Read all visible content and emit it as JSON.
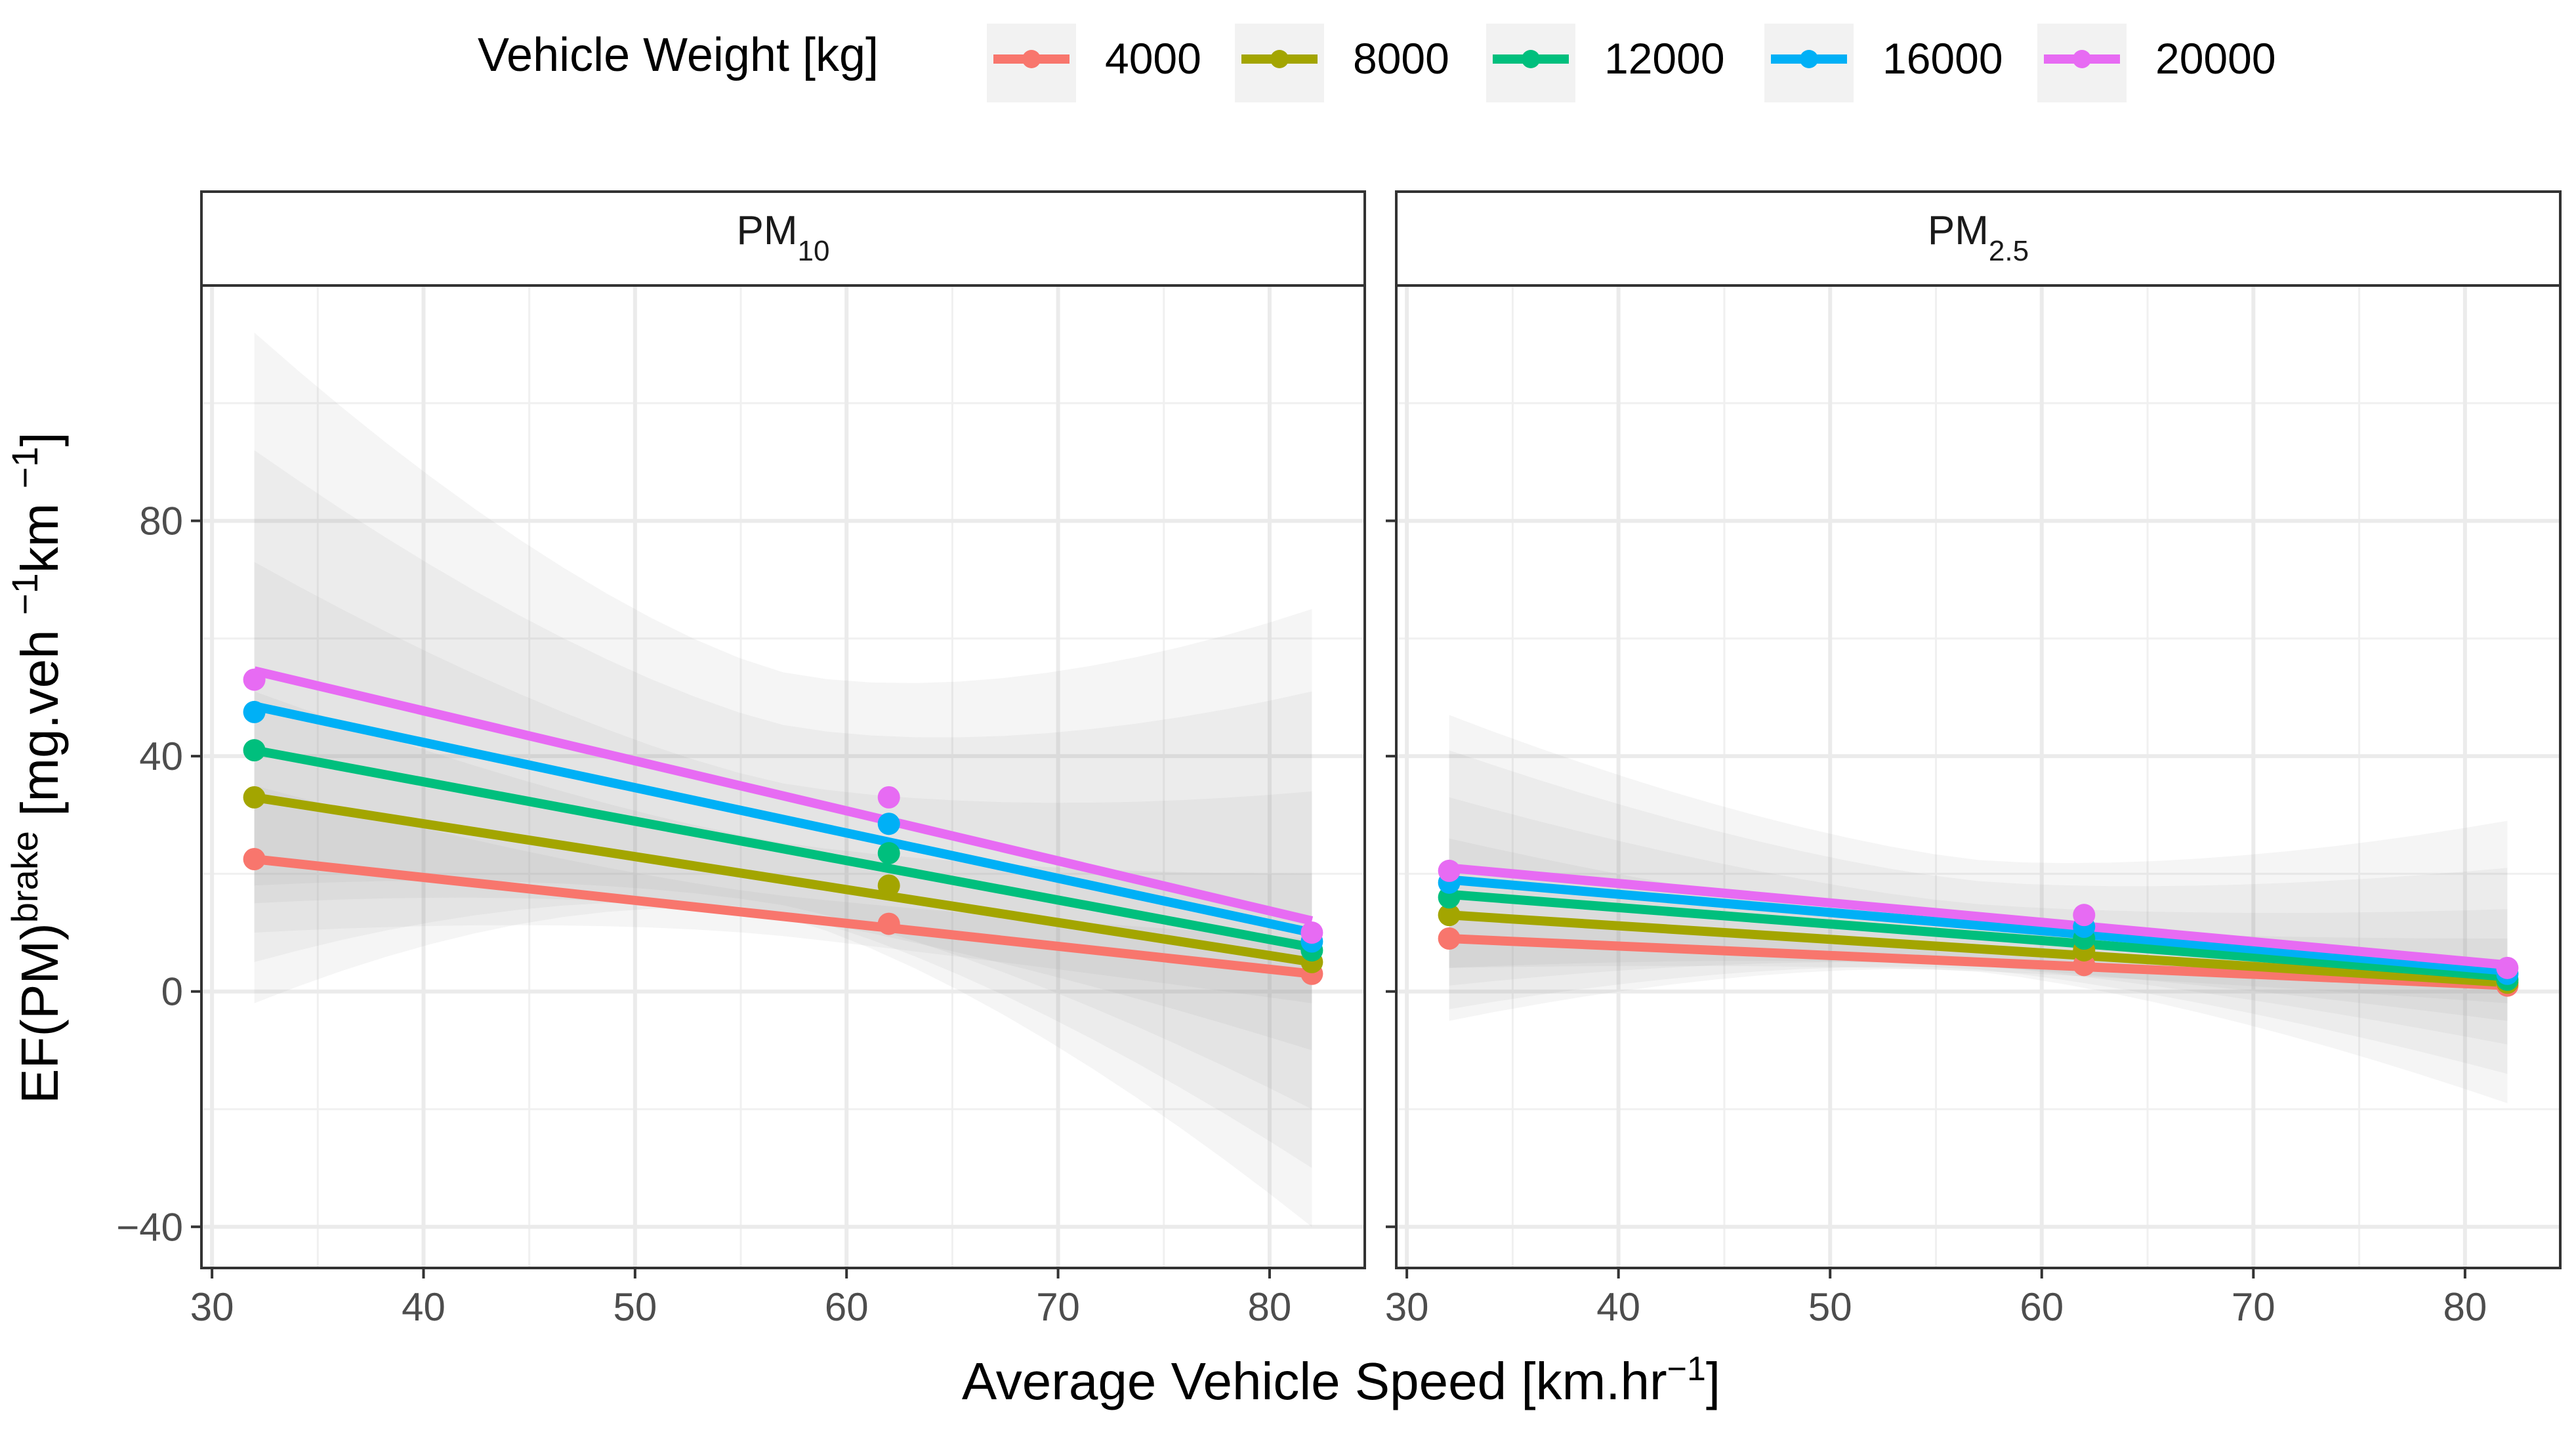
{
  "chart_data": {
    "type": "line",
    "legend": {
      "title": "Vehicle Weight [kg]",
      "position": "top"
    },
    "xlabel": {
      "main": "Average Vehicle Speed [km.hr",
      "sup": "−1",
      "end": "]"
    },
    "ylabel": {
      "pre": "EF(PM)",
      "sup1": "brake",
      "mid": " [mg.veh ",
      "sup2": "−1",
      "mid2": "km ",
      "sup3": "−1",
      "end": "]"
    },
    "xlim": [
      29.5,
      84.5
    ],
    "ylim": [
      -47,
      120
    ],
    "x_ticks": [
      30,
      40,
      50,
      60,
      70,
      80
    ],
    "x_tick_labels": [
      "30",
      "40",
      "50",
      "60",
      "70",
      "80"
    ],
    "y_ticks": [
      -40,
      0,
      40,
      80
    ],
    "y_tick_labels": [
      "−40",
      "0",
      "40",
      "80"
    ],
    "x": [
      32,
      62,
      82
    ],
    "series_meta": [
      {
        "name": "4000",
        "color": "#F8766D"
      },
      {
        "name": "8000",
        "color": "#A3A500"
      },
      {
        "name": "12000",
        "color": "#00BF7D"
      },
      {
        "name": "16000",
        "color": "#00B0F6"
      },
      {
        "name": "20000",
        "color": "#E76BF3"
      }
    ],
    "panels": [
      {
        "title_main": "PM",
        "title_sub": "10",
        "series": [
          {
            "name": "4000",
            "points": [
              22.5,
              11.5,
              3.0
            ],
            "fit": [
              22.5,
              3.0
            ],
            "band": [
              [
                10,
                35
              ],
              [
                -2,
                9
              ]
            ]
          },
          {
            "name": "8000",
            "points": [
              33.0,
              18.0,
              5.0
            ],
            "fit": [
              33.0,
              5.0
            ],
            "band": [
              [
                15,
                51
              ],
              [
                -10,
                20
              ]
            ]
          },
          {
            "name": "12000",
            "points": [
              41.0,
              23.5,
              7.0
            ],
            "fit": [
              41.0,
              7.5
            ],
            "band": [
              [
                18,
                73
              ],
              [
                -20,
                34
              ]
            ]
          },
          {
            "name": "16000",
            "points": [
              47.5,
              28.5,
              8.5
            ],
            "fit": [
              48.5,
              10.0
            ],
            "band": [
              [
                5,
                92
              ],
              [
                -30,
                51
              ]
            ]
          },
          {
            "name": "20000",
            "points": [
              53.0,
              33.0,
              10.0
            ],
            "fit": [
              54.5,
              12.0
            ],
            "band": [
              [
                -2,
                112
              ],
              [
                -40,
                65
              ]
            ]
          }
        ]
      },
      {
        "title_main": "PM",
        "title_sub": "2.5",
        "series": [
          {
            "name": "4000",
            "points": [
              9.0,
              4.5,
              1.0
            ],
            "fit": [
              9.0,
              1.0
            ],
            "band": [
              [
                4,
                14
              ],
              [
                -2,
                4
              ]
            ]
          },
          {
            "name": "8000",
            "points": [
              13.0,
              7.0,
              1.5
            ],
            "fit": [
              13.0,
              1.5
            ],
            "band": [
              [
                4,
                26
              ],
              [
                -5,
                9
              ]
            ]
          },
          {
            "name": "12000",
            "points": [
              16.0,
              9.0,
              2.0
            ],
            "fit": [
              16.5,
              2.5
            ],
            "band": [
              [
                1,
                33
              ],
              [
                -9,
                14
              ]
            ]
          },
          {
            "name": "16000",
            "points": [
              18.5,
              11.0,
              3.0
            ],
            "fit": [
              19.0,
              3.5
            ],
            "band": [
              [
                -3,
                41
              ],
              [
                -14,
                21
              ]
            ]
          },
          {
            "name": "20000",
            "points": [
              20.5,
              13.0,
              4.0
            ],
            "fit": [
              21.0,
              4.5
            ],
            "band": [
              [
                -5,
                47
              ],
              [
                -19,
                29
              ]
            ]
          }
        ]
      }
    ]
  }
}
